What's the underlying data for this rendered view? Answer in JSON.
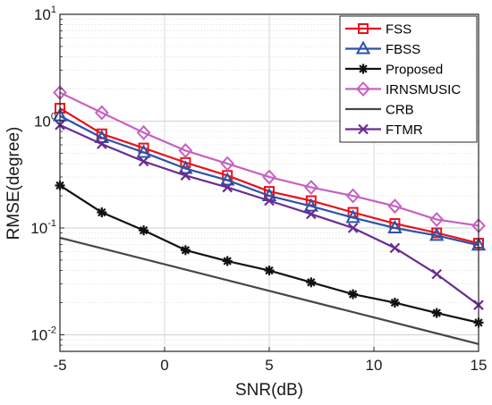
{
  "chart_data": {
    "type": "line",
    "xlabel": "SNR(dB)",
    "ylabel": "RMSE(degree)",
    "xscale": "linear",
    "yscale": "log",
    "xlim": [
      -5,
      15
    ],
    "ylim": [
      0.007,
      10
    ],
    "x_ticks": [
      "-5",
      "0",
      "5",
      "10",
      "15"
    ],
    "y_ticks": [
      {
        "base": "10",
        "exp": "1"
      },
      {
        "base": "10",
        "exp": "0"
      },
      {
        "base": "10",
        "exp": "-1"
      },
      {
        "base": "10",
        "exp": "-2"
      }
    ],
    "grid": true,
    "legend_position": "top-right",
    "x": [
      -5,
      -3,
      -1,
      1,
      3,
      5,
      7,
      9,
      11,
      13,
      15
    ],
    "series": [
      {
        "name": "FSS",
        "color": "#e8121d",
        "marker": "square",
        "values": [
          1.32,
          0.76,
          0.56,
          0.41,
          0.31,
          0.22,
          0.18,
          0.14,
          0.11,
          0.09,
          0.072
        ]
      },
      {
        "name": "FBSS",
        "color": "#2d52a8",
        "marker": "triangle",
        "values": [
          1.12,
          0.7,
          0.51,
          0.36,
          0.28,
          0.2,
          0.16,
          0.125,
          0.1,
          0.085,
          0.069
        ]
      },
      {
        "name": "Proposed",
        "color": "#111111",
        "marker": "asterisk",
        "values": [
          0.25,
          0.14,
          0.095,
          0.062,
          0.049,
          0.04,
          0.031,
          0.024,
          0.02,
          0.016,
          0.013
        ]
      },
      {
        "name": "IRNSMUSIC",
        "color": "#c760c2",
        "marker": "diamond",
        "values": [
          1.85,
          1.2,
          0.78,
          0.53,
          0.4,
          0.3,
          0.24,
          0.2,
          0.16,
          0.12,
          0.105
        ]
      },
      {
        "name": "CRB",
        "color": "#474747",
        "marker": "none",
        "values": [
          0.081,
          0.0645,
          0.0513,
          0.0408,
          0.0324,
          0.0258,
          0.0205,
          0.0163,
          0.013,
          0.0103,
          0.0082
        ]
      },
      {
        "name": "FTMR",
        "color": "#6a2c91",
        "marker": "x",
        "values": [
          0.92,
          0.61,
          0.42,
          0.31,
          0.24,
          0.18,
          0.135,
          0.1,
          0.065,
          0.037,
          0.019
        ]
      }
    ]
  }
}
